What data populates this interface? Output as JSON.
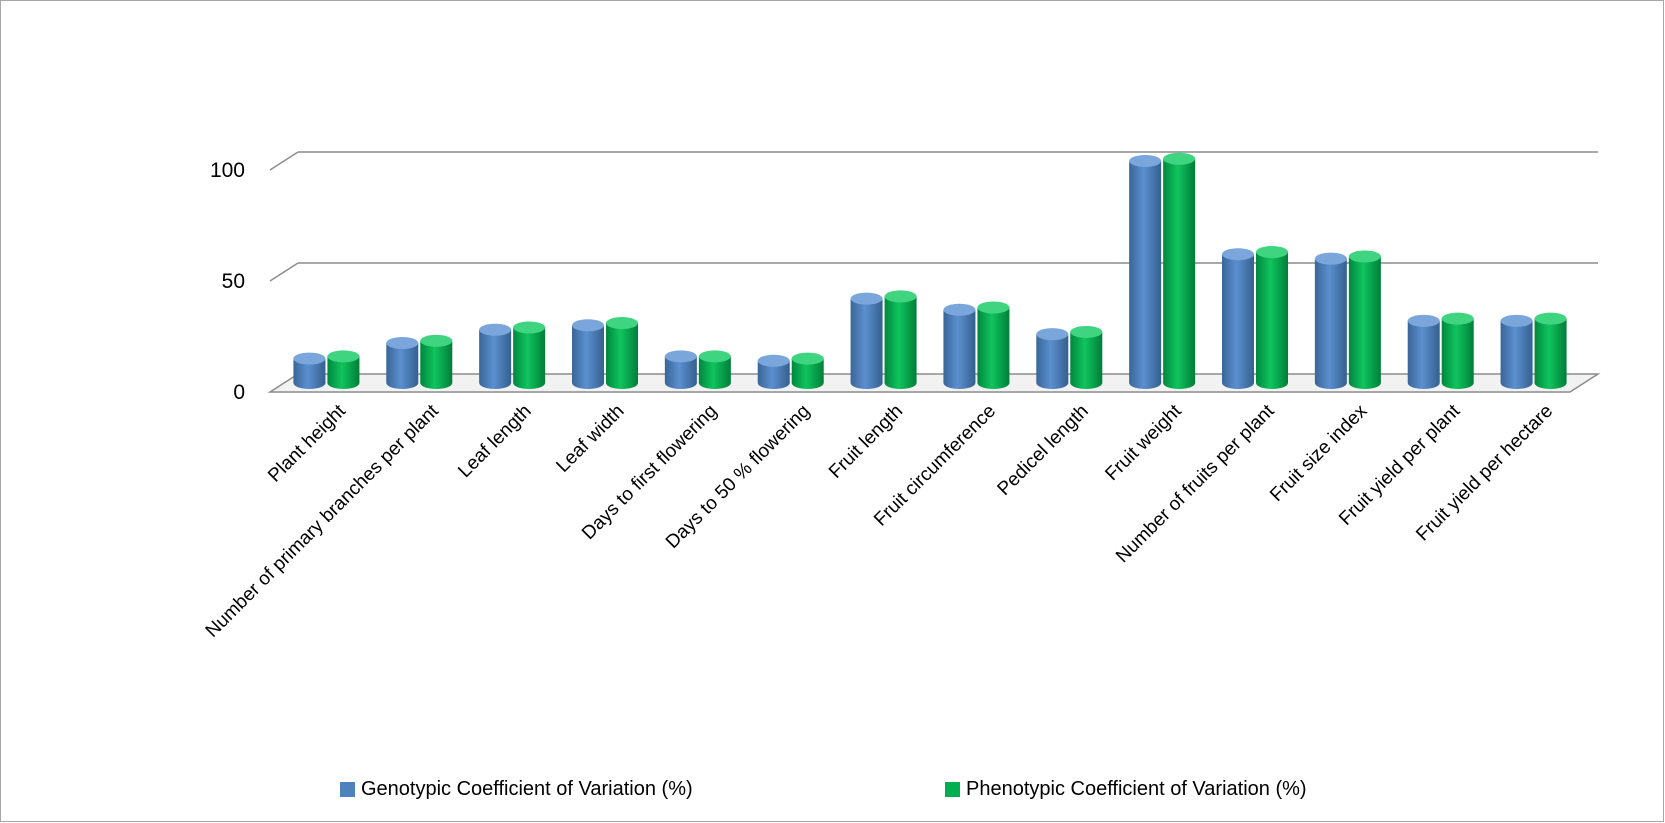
{
  "chart_data": {
    "type": "bar",
    "title": "",
    "xlabel": "",
    "ylabel": "",
    "ylim": [
      0,
      100
    ],
    "yticks": [
      "0",
      "50",
      "100"
    ],
    "grid": true,
    "style": "3d-cylinder",
    "legend_position": "bottom",
    "categories": [
      "Plant height",
      "Number of primary branches per plant",
      "Leaf length",
      "Leaf width",
      "Days to first flowering",
      "Days to 50 % flowering",
      "Fruit length",
      "Fruit circumference",
      "Pedicel length",
      "Fruit weight",
      "Number of fruits per plant",
      "Fruit size index",
      "Fruit yield per plant",
      "Fruit yield per hectare"
    ],
    "series": [
      {
        "name": "Genotypic Coefficient of Variation (%)",
        "color": "#4f81bd",
        "values": [
          11,
          18,
          24,
          26,
          12,
          10,
          38,
          33,
          22,
          100,
          58,
          56,
          28,
          28
        ]
      },
      {
        "name": "Phenotypic Coefficient of Variation (%)",
        "color": "#00b050",
        "values": [
          12,
          19,
          25,
          27,
          12,
          11,
          39,
          34,
          23,
          101,
          59,
          57,
          29,
          29
        ]
      }
    ]
  }
}
